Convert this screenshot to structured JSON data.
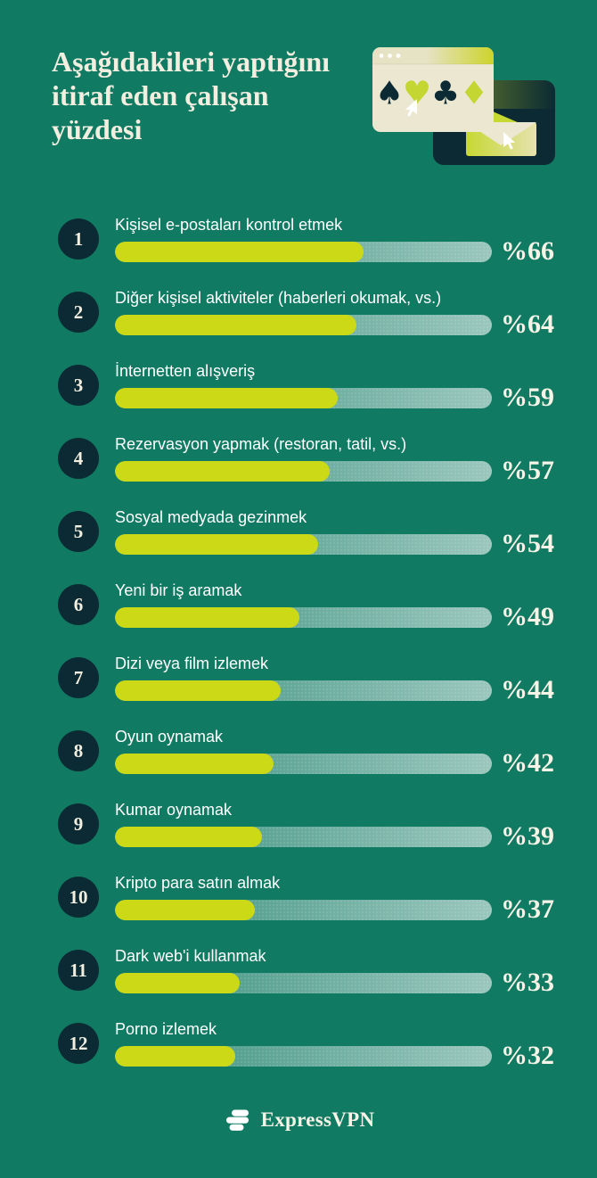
{
  "header": {
    "title": "Aşağıdakileri yaptığını itiraf eden çalışan yüzdesi",
    "title_lines": [
      "Aşağıdakileri yaptığını",
      "itiraf eden çalışan",
      "yüzdesi"
    ]
  },
  "hero": {
    "description": "browser window with playing-card suit symbols and a cursor, overlapping a dark window with an open envelope and a cursor",
    "suits": [
      {
        "name": "spade-suit-icon",
        "glyph": "♠",
        "color": "#0b2a33"
      },
      {
        "name": "heart-suit-icon",
        "glyph": "♥",
        "color": "#c3d631"
      },
      {
        "name": "club-suit-icon",
        "glyph": "♣",
        "color": "#0b2a33"
      },
      {
        "name": "diamond-suit-icon",
        "glyph": "♦",
        "color": "#c3d631"
      }
    ]
  },
  "colors": {
    "background": "#117a63",
    "dark_navy": "#0b2a33",
    "lime_accent": "#ccd916",
    "cream": "#ebe7d0",
    "title_text": "#f2efe0",
    "label_text": "#ffffff"
  },
  "footer": {
    "brand": "ExpressVPN"
  },
  "chart_data": {
    "type": "bar",
    "orientation": "horizontal",
    "title": "Aşağıdakileri yaptığını itiraf eden çalışan yüzdesi",
    "unit": "percent",
    "value_prefix": "%",
    "xlim": [
      0,
      100
    ],
    "grid": false,
    "legend": false,
    "bar_color": "#ccd916",
    "track_style": "translucent white left-to-right gradient",
    "ranks": [
      "1",
      "2",
      "3",
      "4",
      "5",
      "6",
      "7",
      "8",
      "9",
      "10",
      "11",
      "12"
    ],
    "categories": [
      "Kişisel e-postaları kontrol etmek",
      "Diğer kişisel aktiviteler (haberleri okumak, vs.)",
      "İnternetten alışveriş",
      "Rezervasyon yapmak (restoran, tatil, vs.)",
      "Sosyal medyada gezinmek",
      "Yeni bir iş aramak",
      "Dizi veya film izlemek",
      "Oyun oynamak",
      "Kumar oynamak",
      "Kripto para satın almak",
      "Dark web'i kullanmak",
      "Porno izlemek"
    ],
    "values": [
      66,
      64,
      59,
      57,
      54,
      49,
      44,
      42,
      39,
      37,
      33,
      32
    ],
    "display_values": [
      "%66",
      "%64",
      "%59",
      "%57",
      "%54",
      "%49",
      "%44",
      "%42",
      "%39",
      "%37",
      "%33",
      "%32"
    ]
  }
}
